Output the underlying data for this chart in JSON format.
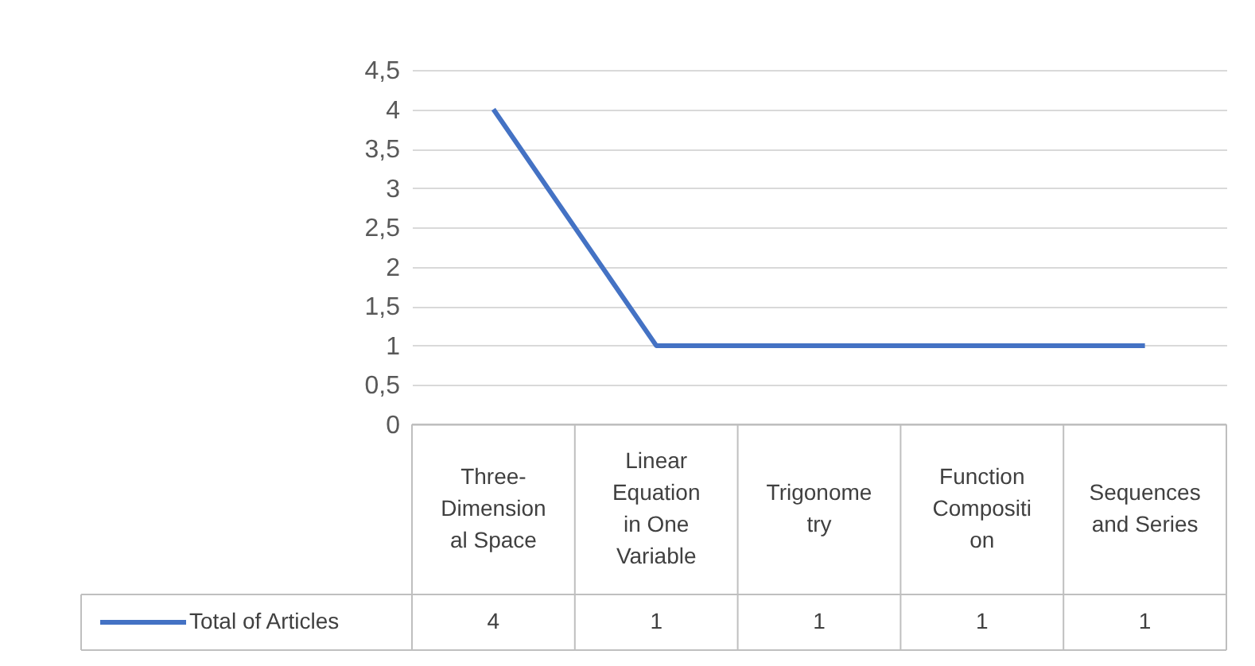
{
  "chart_data": {
    "type": "line",
    "categories": [
      "Three-Dimensional Space",
      "Linear Equation in One Variable",
      "Trigonometry",
      "Function Composition",
      "Sequences and Series"
    ],
    "series": [
      {
        "name": "Total of Articles",
        "color": "#4472c4",
        "values": [
          4,
          1,
          1,
          1,
          1
        ]
      }
    ],
    "ylim": [
      0,
      4.5
    ],
    "yticks": [
      0,
      {
        "value": 0.5,
        "label": "0,5"
      },
      1,
      {
        "value": 1.5,
        "label": "1,5"
      },
      2,
      {
        "value": 2.5,
        "label": "2,5"
      },
      3,
      {
        "value": 3.5,
        "label": "3,5"
      },
      4,
      {
        "value": 4.5,
        "label": "4,5"
      }
    ],
    "grid": "y",
    "legend": "bottom",
    "data_labels": true,
    "line_style": "solid",
    "marker": "none"
  }
}
